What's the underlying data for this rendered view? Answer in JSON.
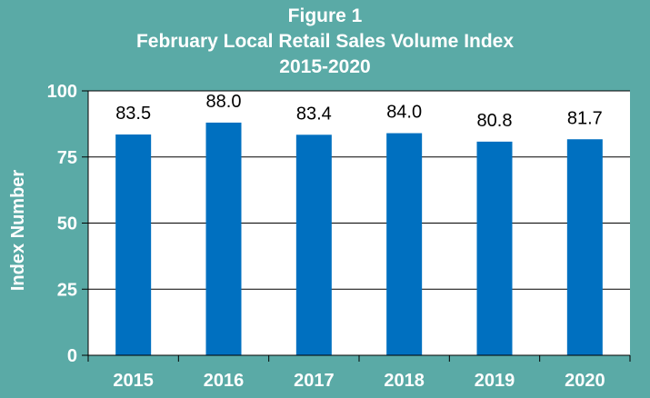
{
  "title_lines": [
    "Figure 1",
    "February Local Retail Sales Volume Index",
    "2015-2020"
  ],
  "colors": {
    "background": "#5aaaa6",
    "plot_area": "#ffffff",
    "bar": "#0070c0",
    "axis_text": "#ffffff",
    "data_label": "#000000",
    "gridline": "#000000"
  },
  "chart_data": {
    "type": "bar",
    "title": "Figure 1 February Local Retail Sales Volume Index 2015-2020",
    "xlabel": "",
    "ylabel": "Index Number",
    "categories": [
      "2015",
      "2016",
      "2017",
      "2018",
      "2019",
      "2020"
    ],
    "values": [
      83.5,
      88.0,
      83.4,
      84.0,
      80.8,
      81.7
    ],
    "value_labels": [
      "83.5",
      "88.0",
      "83.4",
      "84.0",
      "80.8",
      "81.7"
    ],
    "ylim": [
      0,
      100
    ],
    "yticks": [
      0,
      25,
      50,
      75,
      100
    ],
    "ytick_labels": [
      "0",
      "25",
      "50",
      "75",
      "100"
    ],
    "grid": true,
    "legend": "none"
  }
}
